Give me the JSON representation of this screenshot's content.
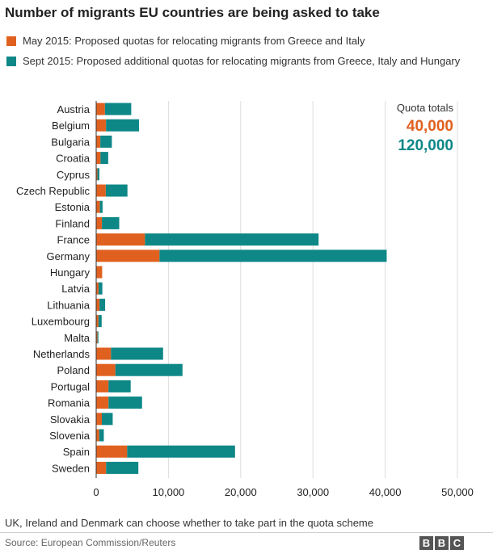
{
  "title": "Number of migrants EU countries are being asked to take",
  "colors": {
    "may": "#e0611f",
    "sept": "#0e8787",
    "grid": "#dddddd",
    "axis": "#333333"
  },
  "legend": [
    {
      "label": "May 2015: Proposed quotas for relocating migrants from Greece and Italy",
      "color": "#e0611f"
    },
    {
      "label": "Sept 2015: Proposed additional quotas for relocating migrants from Greece, Italy and Hungary",
      "color": "#0e8787"
    }
  ],
  "quota_totals": {
    "title": "Quota totals",
    "may": "40,000",
    "sept": "120,000"
  },
  "footnote": "UK, Ireland and Denmark can choose whether to take part in the quota scheme",
  "source": "Source: European Commission/Reuters",
  "logo": [
    "B",
    "B",
    "C"
  ],
  "chart_data": {
    "type": "bar",
    "orientation": "horizontal",
    "stacked": true,
    "xlim": [
      0,
      50000
    ],
    "xticks": [
      "0",
      "10,000",
      "20,000",
      "30,000",
      "40,000",
      "50,000"
    ],
    "xtick_values": [
      0,
      10000,
      20000,
      30000,
      40000,
      50000
    ],
    "grid": true,
    "categories": [
      "Austria",
      "Belgium",
      "Bulgaria",
      "Croatia",
      "Cyprus",
      "Czech Republic",
      "Estonia",
      "Finland",
      "France",
      "Germany",
      "Hungary",
      "Latvia",
      "Lithuania",
      "Luxembourg",
      "Malta",
      "Netherlands",
      "Poland",
      "Portugal",
      "Romania",
      "Slovakia",
      "Slovenia",
      "Spain",
      "Sweden"
    ],
    "series": [
      {
        "name": "May 2015: Proposed quotas for relocating migrants from Greece and Italy",
        "values": [
          1213,
          1364,
          572,
          600,
          173,
          1328,
          512,
          792,
          6752,
          8763,
          827,
          328,
          459,
          320,
          175,
          2047,
          2659,
          1701,
          1705,
          785,
          426,
          4288,
          1369
        ]
      },
      {
        "name": "Sept 2015: Proposed additional quotas for relocating migrants from Greece, Italy and Hungary",
        "values": [
          3640,
          4564,
          1600,
          1064,
          274,
          3000,
          373,
          2398,
          24031,
          31443,
          0,
          526,
          780,
          440,
          133,
          7214,
          9287,
          3074,
          4646,
          1502,
          631,
          14931,
          4469
        ]
      }
    ]
  }
}
